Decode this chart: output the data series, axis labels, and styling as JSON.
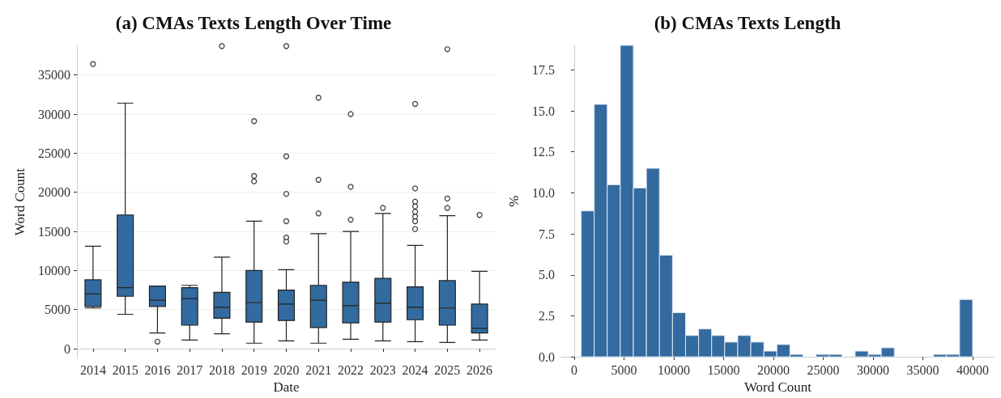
{
  "chart_data": [
    {
      "type": "box",
      "title": "(a) CMAs Texts Length Over Time",
      "xlabel": "Date",
      "ylabel": "Word Count",
      "color": "#336a9f",
      "grid": "y",
      "categories": [
        "2014",
        "2015",
        "2016",
        "2017",
        "2018",
        "2019",
        "2020",
        "2021",
        "2022",
        "2023",
        "2024",
        "2025",
        "2026"
      ],
      "ylim": [
        -1250,
        38800
      ],
      "yticks": [
        0,
        5000,
        10000,
        15000,
        20000,
        25000,
        30000,
        35000
      ],
      "boxes": [
        {
          "low": 5200,
          "q1": 5400,
          "median": 7000,
          "q3": 8800,
          "high": 13100,
          "outliers": [
            36400
          ]
        },
        {
          "low": 4400,
          "q1": 6700,
          "median": 7800,
          "q3": 17100,
          "high": 31400
        },
        {
          "low": 2000,
          "q1": 5400,
          "median": 6200,
          "q3": 8000,
          "high": 8000,
          "outliers": [
            900
          ]
        },
        {
          "low": 1100,
          "q1": 3000,
          "median": 6400,
          "q3": 7800,
          "high": 8100
        },
        {
          "low": 1900,
          "q1": 3900,
          "median": 5300,
          "q3": 7200,
          "high": 11700,
          "outliers": [
            38700
          ]
        },
        {
          "low": 700,
          "q1": 3400,
          "median": 5900,
          "q3": 10000,
          "high": 16300,
          "outliers": [
            29100,
            22100,
            21400
          ]
        },
        {
          "low": 1000,
          "q1": 3600,
          "median": 5700,
          "q3": 7500,
          "high": 10100,
          "outliers": [
            38700,
            24600,
            19800,
            16300,
            14200,
            13700
          ]
        },
        {
          "low": 700,
          "q1": 2700,
          "median": 6200,
          "q3": 8100,
          "high": 14700,
          "outliers": [
            32100,
            21600,
            17300
          ]
        },
        {
          "low": 1200,
          "q1": 3300,
          "median": 5500,
          "q3": 8500,
          "high": 15000,
          "outliers": [
            30000,
            20700,
            16500
          ]
        },
        {
          "low": 1000,
          "q1": 3400,
          "median": 5800,
          "q3": 9000,
          "high": 17300,
          "outliers": [
            18000
          ]
        },
        {
          "low": 900,
          "q1": 3700,
          "median": 5300,
          "q3": 7900,
          "high": 13200,
          "outliers": [
            31300,
            20500,
            18800,
            18200,
            17500,
            16900,
            16300,
            15300
          ]
        },
        {
          "low": 800,
          "q1": 3000,
          "median": 5200,
          "q3": 8700,
          "high": 17000,
          "outliers": [
            38300,
            19200,
            18000
          ]
        },
        {
          "low": 1100,
          "q1": 2000,
          "median": 2600,
          "q3": 5700,
          "high": 9900,
          "outliers": [
            17100
          ]
        }
      ]
    },
    {
      "type": "histogram",
      "title": "(b) CMAs Texts Length",
      "xlabel": "Word Count",
      "ylabel": "%",
      "color": "#336a9f",
      "grid": false,
      "bins": [
        700,
        2010,
        3320,
        4630,
        5940,
        7250,
        8560,
        9870,
        11180,
        12490,
        13800,
        15110,
        16420,
        17730,
        19040,
        20350,
        21660,
        22970,
        24280,
        25590,
        26900,
        28210,
        29520,
        30830,
        32140,
        33450,
        34760,
        36070,
        37380,
        38690,
        40000
      ],
      "values": [
        8.9,
        15.4,
        10.5,
        19.0,
        10.3,
        11.5,
        6.2,
        2.7,
        1.3,
        1.7,
        1.3,
        0.9,
        1.3,
        0.9,
        0.35,
        0.75,
        0.15,
        0,
        0.15,
        0.15,
        0,
        0.35,
        0.15,
        0.55,
        0,
        0,
        0,
        0.15,
        0.15,
        3.5
      ],
      "xlim": [
        -1300,
        42200
      ],
      "xticks": [
        0,
        5000,
        10000,
        15000,
        20000,
        25000,
        30000,
        35000,
        40000
      ],
      "ylim": [
        0,
        19.0
      ],
      "yticks": [
        {
          "value": 0,
          "label": "0.0"
        },
        {
          "value": 2.5,
          "label": "2.5"
        },
        {
          "value": 5,
          "label": "5.0"
        },
        {
          "value": 7.5,
          "label": "7.5"
        },
        {
          "value": 10,
          "label": "10.0"
        },
        {
          "value": 12.5,
          "label": "12.5"
        },
        {
          "value": 15,
          "label": "15.0"
        },
        {
          "value": 17.5,
          "label": "17.5"
        }
      ]
    }
  ]
}
